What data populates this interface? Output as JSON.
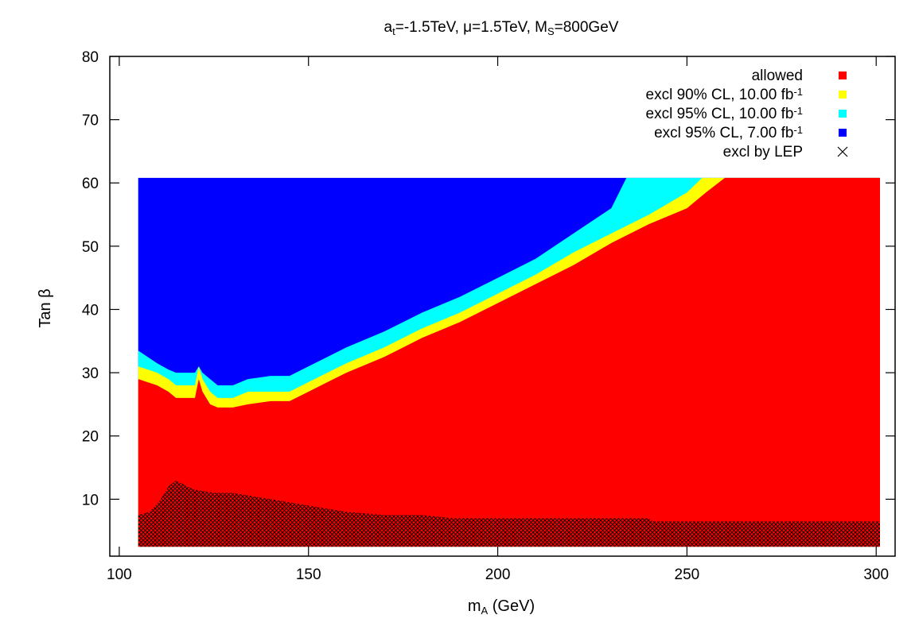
{
  "chart_data": {
    "type": "heatmap",
    "title": {
      "parts": [
        {
          "text": "a"
        },
        {
          "text": "t",
          "sub": true
        },
        {
          "text": "=-1.5TeV, "
        },
        {
          "text": "μ"
        },
        {
          "text": "=1.5TeV, M"
        },
        {
          "text": "S",
          "sub": true
        },
        {
          "text": "=800GeV"
        }
      ]
    },
    "xlabel": {
      "parts": [
        {
          "text": "m"
        },
        {
          "text": "A",
          "sub": true
        },
        {
          "text": " (GeV)"
        }
      ]
    },
    "ylabel": "Tan β",
    "xlim": [
      97.5,
      305
    ],
    "ylim": [
      1,
      80
    ],
    "x_ticks": [
      100,
      150,
      200,
      250,
      300
    ],
    "y_ticks": [
      10,
      20,
      30,
      40,
      50,
      60,
      70,
      80
    ],
    "x_tick_labels": [
      "100",
      "150",
      "200",
      "250",
      "300"
    ],
    "y_tick_labels": [
      "10",
      "20",
      "30",
      "40",
      "50",
      "60",
      "70",
      "80"
    ],
    "grid": false,
    "legend_position": "top-right",
    "x_range": [
      105,
      301
    ],
    "tanb_range": [
      2.5,
      60.8
    ],
    "colors": {
      "allowed": "#ff0000",
      "excl90_10": "#ffff00",
      "excl95_10": "#00ffff",
      "excl95_7": "#0000ff",
      "lep": "#000000"
    },
    "legend": [
      {
        "key": "allowed",
        "parts": [
          {
            "text": "allowed"
          }
        ],
        "marker": "square",
        "color": "#ff0000"
      },
      {
        "key": "excl90_10",
        "parts": [
          {
            "text": "excl 90% CL, 10.00 fb"
          },
          {
            "text": "-1",
            "sup": true
          }
        ],
        "marker": "square",
        "color": "#ffff00"
      },
      {
        "key": "excl95_10",
        "parts": [
          {
            "text": "excl 95% CL, 10.00 fb"
          },
          {
            "text": "-1",
            "sup": true
          }
        ],
        "marker": "square",
        "color": "#00ffff"
      },
      {
        "key": "excl95_7",
        "parts": [
          {
            "text": "excl 95% CL, 7.00 fb"
          },
          {
            "text": "-1",
            "sup": true
          }
        ],
        "marker": "square",
        "color": "#0000ff"
      },
      {
        "key": "lep",
        "parts": [
          {
            "text": "excl by LEP"
          }
        ],
        "marker": "cross",
        "color": "#000000"
      }
    ],
    "boundaries": {
      "allowed_upper": [
        [
          105,
          29
        ],
        [
          110,
          28
        ],
        [
          113,
          27
        ],
        [
          115,
          26
        ],
        [
          120,
          26
        ],
        [
          121,
          29
        ],
        [
          122,
          27
        ],
        [
          124,
          25
        ],
        [
          126,
          24.5
        ],
        [
          130,
          24.5
        ],
        [
          134,
          25
        ],
        [
          140,
          25.5
        ],
        [
          145,
          25.5
        ],
        [
          150,
          27
        ],
        [
          155,
          28.5
        ],
        [
          160,
          30
        ],
        [
          170,
          32.5
        ],
        [
          180,
          35.5
        ],
        [
          190,
          38
        ],
        [
          200,
          41
        ],
        [
          210,
          44
        ],
        [
          220,
          47
        ],
        [
          230,
          50.5
        ],
        [
          240,
          53.5
        ],
        [
          250,
          56
        ],
        [
          255,
          58.5
        ],
        [
          260,
          60.8
        ],
        [
          301,
          60.8
        ]
      ],
      "excl90_upper": [
        [
          105,
          31
        ],
        [
          110,
          30
        ],
        [
          113,
          29
        ],
        [
          115,
          28
        ],
        [
          120,
          28
        ],
        [
          121,
          31
        ],
        [
          122,
          29
        ],
        [
          124,
          27
        ],
        [
          126,
          26
        ],
        [
          130,
          26
        ],
        [
          134,
          27
        ],
        [
          140,
          27
        ],
        [
          145,
          27
        ],
        [
          150,
          28.5
        ],
        [
          155,
          30
        ],
        [
          160,
          31.5
        ],
        [
          170,
          34
        ],
        [
          180,
          37
        ],
        [
          190,
          39.5
        ],
        [
          200,
          42.5
        ],
        [
          210,
          45.5
        ],
        [
          220,
          49
        ],
        [
          230,
          52
        ],
        [
          240,
          55
        ],
        [
          250,
          58.5
        ],
        [
          254,
          60.8
        ],
        [
          301,
          60.8
        ]
      ],
      "excl95_10_upper": [
        [
          105,
          33.5
        ],
        [
          110,
          31.5
        ],
        [
          113,
          30.5
        ],
        [
          115,
          30
        ],
        [
          120,
          30
        ],
        [
          121,
          31
        ],
        [
          122,
          30
        ],
        [
          124,
          29
        ],
        [
          126,
          28
        ],
        [
          130,
          28
        ],
        [
          134,
          29
        ],
        [
          140,
          29.5
        ],
        [
          145,
          29.5
        ],
        [
          150,
          31
        ],
        [
          155,
          32.5
        ],
        [
          160,
          34
        ],
        [
          170,
          36.5
        ],
        [
          180,
          39.5
        ],
        [
          190,
          42
        ],
        [
          200,
          45
        ],
        [
          210,
          48
        ],
        [
          220,
          52
        ],
        [
          230,
          56
        ],
        [
          234,
          60.8
        ],
        [
          301,
          60.8
        ]
      ],
      "lep_upper": [
        [
          105,
          7.5
        ],
        [
          108,
          8
        ],
        [
          111,
          10
        ],
        [
          113,
          12
        ],
        [
          115,
          13
        ],
        [
          118,
          12
        ],
        [
          120,
          11.5
        ],
        [
          125,
          11
        ],
        [
          130,
          11
        ],
        [
          135,
          10.5
        ],
        [
          140,
          10
        ],
        [
          145,
          9.5
        ],
        [
          150,
          9
        ],
        [
          155,
          8.5
        ],
        [
          160,
          8
        ],
        [
          170,
          7.5
        ],
        [
          180,
          7.5
        ],
        [
          188,
          7
        ],
        [
          200,
          7
        ],
        [
          220,
          7
        ],
        [
          240,
          7
        ],
        [
          241,
          6.5
        ],
        [
          250,
          6.5
        ],
        [
          301,
          6.5
        ]
      ]
    }
  }
}
